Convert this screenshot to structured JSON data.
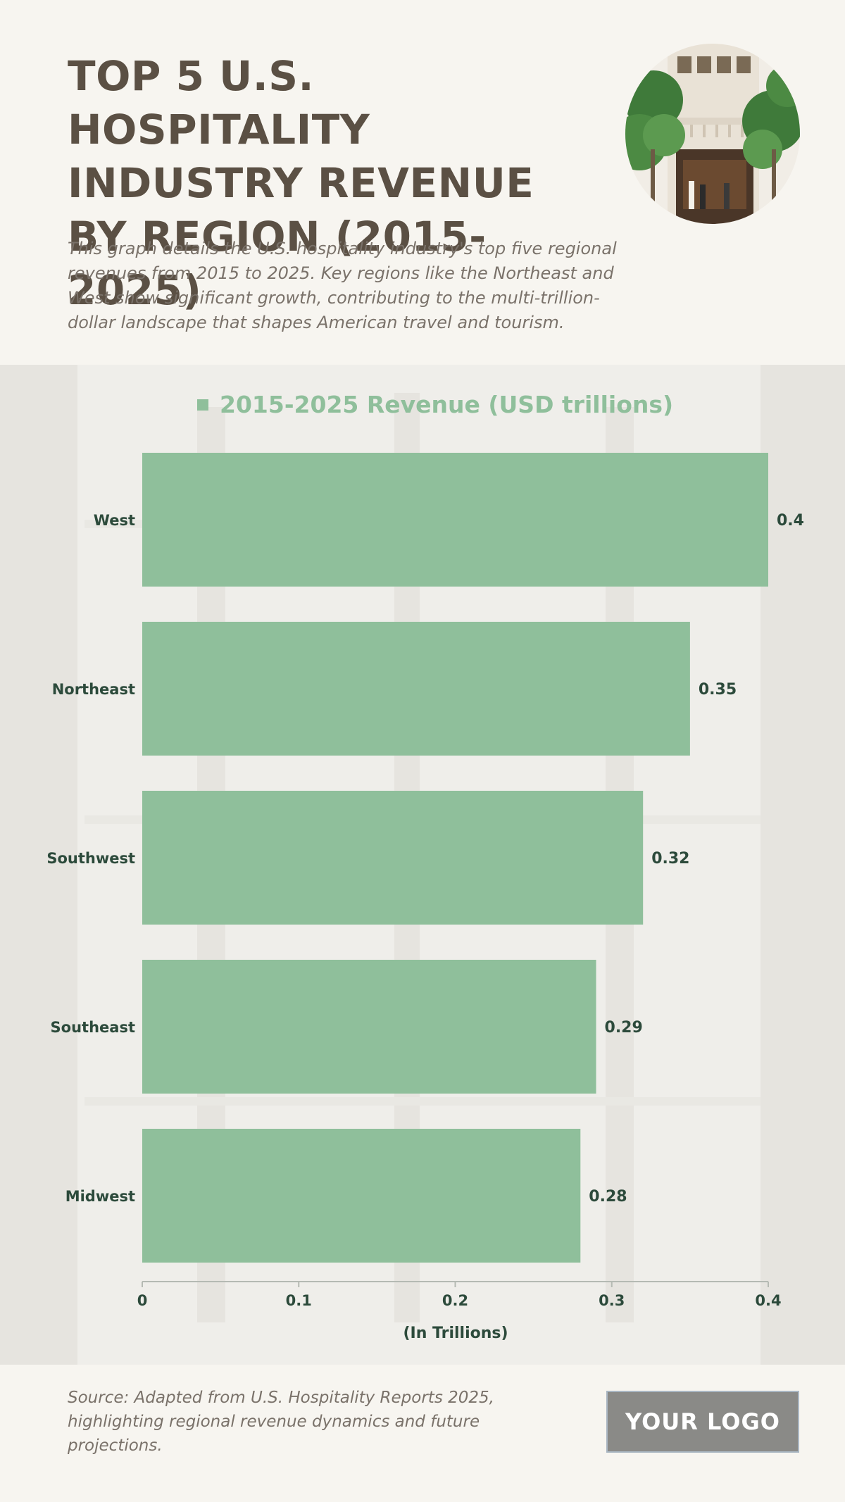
{
  "header": {
    "title": "TOP 5 U.S. HOSPITALITY INDUSTRY REVENUE BY REGION (2015-2025)",
    "subtitle": "This graph details the U.S. hospitality industry's top five regional revenues from 2015 to 2025. Key regions like the Northeast and West show significant growth, contributing to the multi-trillion-dollar landscape that shapes American travel and tourism."
  },
  "photo": {
    "icon": "hotel-entrance-photo"
  },
  "chart_data": {
    "type": "bar",
    "orientation": "horizontal",
    "categories": [
      "West",
      "Northeast",
      "Southwest",
      "Southeast",
      "Midwest"
    ],
    "series": [
      {
        "name": "2015-2025 Revenue (USD trillions)",
        "values": [
          0.4,
          0.35,
          0.32,
          0.29,
          0.28
        ]
      }
    ],
    "value_labels": [
      "0.4",
      "0.35",
      "0.32",
      "0.29",
      "0.28"
    ],
    "xlabel": "(In Trillions)",
    "ylabel": "",
    "xlim": [
      0,
      0.4
    ],
    "x_ticks": [
      "0",
      "0.1",
      "0.2",
      "0.3",
      "0.4"
    ],
    "legend_position": "top-center",
    "grid": false,
    "colors": {
      "bar": "#8fbf9b",
      "text": "#2c4a3b",
      "legend_text": "#8fbf9b"
    }
  },
  "footer": {
    "source": "Source: Adapted from U.S. Hospitality Reports 2025, highlighting regional revenue dynamics and future projections.",
    "logo_text": "YOUR LOGO"
  }
}
